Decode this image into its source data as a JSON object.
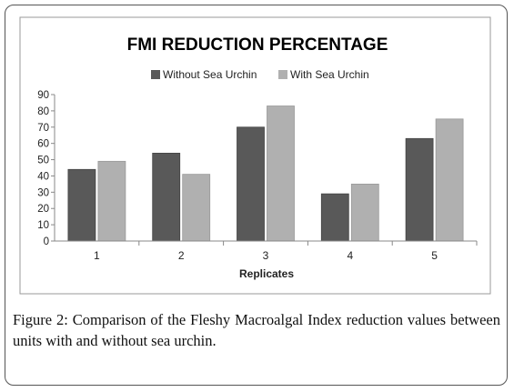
{
  "chart_data": {
    "type": "bar",
    "title": "FMI REDUCTION PERCENTAGE",
    "xlabel": "Replicates",
    "ylabel": "",
    "categories": [
      "1",
      "2",
      "3",
      "4",
      "5"
    ],
    "series": [
      {
        "name": "Without Sea Urchin",
        "color": "#595959",
        "values": [
          44,
          54,
          70,
          29,
          63
        ]
      },
      {
        "name": "With Sea Urchin",
        "color": "#b0b0b0",
        "values": [
          49,
          41,
          83,
          35,
          75
        ]
      }
    ],
    "ylim": [
      0,
      90
    ],
    "yticks": [
      "0",
      "10",
      "20",
      "30",
      "40",
      "50",
      "60",
      "70",
      "80",
      "90"
    ],
    "legend": "top",
    "grid": false
  },
  "caption": {
    "label": "Figure 2:",
    "text": "Comparison of the Fleshy Macroalgal Index reduction values between units with and without sea urchin."
  }
}
